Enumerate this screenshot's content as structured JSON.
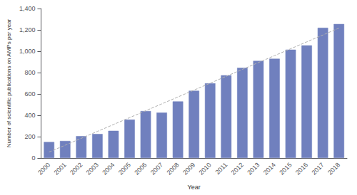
{
  "chart_data": {
    "type": "bar",
    "xlabel": "Year",
    "ylabel": "Number of scientific publications on AMPs per year",
    "categories": [
      "2000",
      "2001",
      "2002",
      "2003",
      "2004",
      "2005",
      "2006",
      "2007",
      "2008",
      "2009",
      "2010",
      "2011",
      "2012",
      "2013",
      "2014",
      "2015",
      "2016",
      "2017",
      "2018"
    ],
    "series": [
      {
        "type": "bar",
        "color": "#7080be",
        "values": [
          150,
          160,
          205,
          225,
          255,
          360,
          440,
          425,
          530,
          630,
          700,
          775,
          845,
          910,
          930,
          1015,
          1055,
          1220,
          1255
        ]
      },
      {
        "type": "line",
        "line_style": "dashed",
        "color": "#b0b0b0",
        "values": [
          55.39,
          119.91,
          184.43,
          248.95,
          313.46,
          377.98,
          442.5,
          507.02,
          571.54,
          636.05,
          700.57,
          765.09,
          829.61,
          894.12,
          958.64,
          1023.16,
          1087.68,
          1152.19,
          1216.71
        ]
      }
    ],
    "ylim": [
      0,
      1400
    ],
    "yticks": [
      0,
      200,
      400,
      600,
      800,
      {
        "value": 1000,
        "label": "1,000"
      },
      {
        "value": 1200,
        "label": "1,200"
      },
      {
        "value": 1400,
        "label": "1,400"
      }
    ],
    "grid": false
  }
}
